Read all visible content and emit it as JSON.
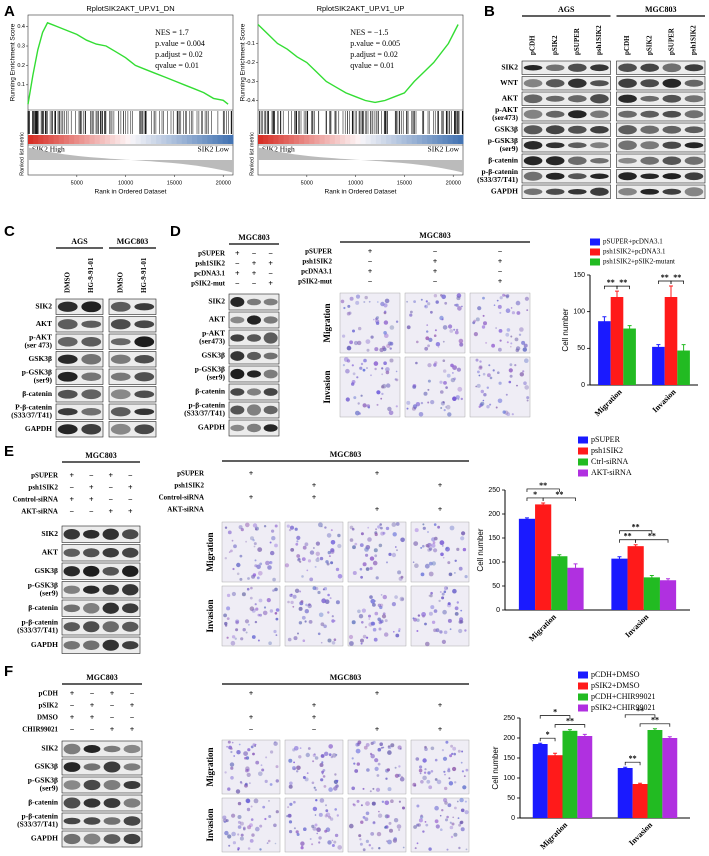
{
  "panel_labels": [
    "A",
    "B",
    "C",
    "D",
    "E",
    "F"
  ],
  "chart_data": [
    {
      "type": "line",
      "title": "RplotSIK2AKT_UP.V1_DN",
      "color": "#33dd33",
      "stats": [
        "NES = 1.7",
        "p.value = 0.004",
        "p.adjust = 0.02",
        "qvalue = 0.01"
      ],
      "labels": [
        "SIK2 High",
        "SIK2 Low"
      ],
      "xlabel": "Rank in Ordered Dataset",
      "ylabel": "Running Enrichment Score",
      "metric_label": "Ranked list metric",
      "x": [
        0,
        500,
        1000,
        1500,
        2000,
        2500,
        3000,
        4000,
        5000,
        6000,
        7000,
        8000,
        9000,
        10000,
        11000,
        12000,
        13000,
        14000,
        15000,
        16000,
        17000,
        18000,
        19000,
        20000,
        20500
      ],
      "values": [
        0,
        0.15,
        0.28,
        0.37,
        0.42,
        0.41,
        0.4,
        0.38,
        0.36,
        0.33,
        0.31,
        0.3,
        0.27,
        0.24,
        0.2,
        0.18,
        0.16,
        0.14,
        0.12,
        0.1,
        0.08,
        0.06,
        0.03,
        0.02,
        0
      ],
      "xlim": [
        0,
        21000
      ],
      "xticks": [
        5000,
        10000,
        15000,
        20000
      ],
      "ylim": [
        -0.03,
        0.46
      ],
      "yticks": [
        0.1,
        0.2,
        0.3,
        0.4
      ]
    },
    {
      "type": "line",
      "title": "RplotSIK2AKT_UP.V1_UP",
      "color": "#33dd33",
      "stats": [
        "NES = −1.5",
        "p.value = 0.005",
        "p.adjust = 0.02",
        "qvalue = 0.01"
      ],
      "labels": [
        "SIK2 High",
        "SIK2 Low"
      ],
      "xlabel": "Rank in Ordered Dataset",
      "ylabel": "Running Enrichment Score",
      "metric_label": "Ranked list metric",
      "x": [
        0,
        1000,
        2000,
        3000,
        4000,
        5000,
        6000,
        7000,
        8000,
        9000,
        10000,
        11000,
        12000,
        13000,
        14000,
        15000,
        16000,
        17000,
        18000,
        19500,
        20500
      ],
      "values": [
        0,
        -0.05,
        -0.1,
        -0.13,
        -0.17,
        -0.2,
        -0.25,
        -0.3,
        -0.33,
        -0.36,
        -0.38,
        -0.4,
        -0.41,
        -0.4,
        -0.38,
        -0.36,
        -0.3,
        -0.25,
        -0.2,
        -0.1,
        0
      ],
      "xlim": [
        0,
        21000
      ],
      "xticks": [
        5000,
        10000,
        15000,
        20000
      ],
      "ylim": [
        -0.45,
        0.05
      ],
      "yticks": [
        -0.1,
        -0.2,
        -0.3,
        -0.4
      ]
    },
    {
      "type": "bar",
      "ylabel": "Cell number",
      "categories": [
        "Migration",
        "Invasion"
      ],
      "ylim": [
        0,
        150
      ],
      "yticks": [
        0,
        50,
        100,
        150
      ],
      "series": [
        {
          "name": "pSUPER+pcDNA3.1",
          "color": "#1a1aff",
          "values": [
            87,
            52
          ],
          "errors": [
            6,
            3
          ]
        },
        {
          "name": "psh1SIK2+pcDNA3.1",
          "color": "#ff1a1a",
          "values": [
            120,
            120
          ],
          "errors": [
            8,
            15
          ]
        },
        {
          "name": "psh1SIK2+pSIK2-mutant",
          "color": "#22bb22",
          "values": [
            77,
            47
          ],
          "errors": [
            4,
            8
          ]
        }
      ],
      "significance": [
        "**",
        "**",
        "**",
        "**"
      ]
    },
    {
      "type": "bar",
      "ylabel": "Cell number",
      "categories": [
        "Migration",
        "Invasion"
      ],
      "ylim": [
        0,
        250
      ],
      "yticks": [
        0,
        50,
        100,
        150,
        200,
        250
      ],
      "series": [
        {
          "name": "pSUPER",
          "color": "#1a1aff",
          "values": [
            190,
            107
          ],
          "errors": [
            2,
            4
          ]
        },
        {
          "name": "psh1SIK2",
          "color": "#ff1a1a",
          "values": [
            220,
            133
          ],
          "errors": [
            3,
            3
          ]
        },
        {
          "name": "Ctrl-siRNA",
          "color": "#22bb22",
          "values": [
            112,
            68
          ],
          "errors": [
            3,
            4
          ]
        },
        {
          "name": "AKT-siRNA",
          "color": "#b030e0",
          "values": [
            88,
            62
          ],
          "errors": [
            8,
            3
          ]
        }
      ],
      "significance": [
        "**",
        "*",
        "**",
        "**",
        "**",
        "**"
      ]
    },
    {
      "type": "bar",
      "ylabel": "Cell number",
      "categories": [
        "Migration",
        "Invasion"
      ],
      "ylim": [
        0,
        250
      ],
      "yticks": [
        0,
        50,
        100,
        150,
        200,
        250
      ],
      "series": [
        {
          "name": "pCDH+DMSO",
          "color": "#1a1aff",
          "values": [
            185,
            125
          ],
          "errors": [
            2,
            2
          ]
        },
        {
          "name": "pSIK2+DMSO",
          "color": "#ff1a1a",
          "values": [
            157,
            85
          ],
          "errors": [
            5,
            2
          ]
        },
        {
          "name": "pCDH+CHIR99021",
          "color": "#22bb22",
          "values": [
            218,
            220
          ],
          "errors": [
            3,
            3
          ]
        },
        {
          "name": "pSIK2+CHIR99021",
          "color": "#b030e0",
          "values": [
            205,
            200
          ],
          "errors": [
            4,
            3
          ]
        }
      ],
      "significance": [
        "*",
        "*",
        "**",
        "**",
        "**",
        "**"
      ]
    }
  ],
  "blot_b": {
    "header": [
      "AGS",
      "MGC803"
    ],
    "lanes": [
      "pCDH",
      "pSIK2",
      "pSUPER",
      "psh1SIK2",
      "pCDH",
      "pSIK2",
      "pSUPER",
      "psh1SIK2"
    ],
    "rows": [
      [
        "SIK2"
      ],
      [
        "WNT"
      ],
      [
        "AKT"
      ],
      [
        "p-AKT",
        "(ser473)"
      ],
      [
        "GSK3β"
      ],
      [
        "p-GSK3β",
        "(ser9)"
      ],
      [
        "β-catenin"
      ],
      [
        "p-β-catenin",
        "(S33/37/T41)"
      ],
      [
        "GAPDH"
      ]
    ]
  },
  "blot_c": {
    "header": [
      "AGS",
      "MGC803"
    ],
    "lanes": [
      "DMSO",
      "HG-9-91-01",
      "DMSO",
      "HG-9-91-01"
    ],
    "rows": [
      [
        "SIK2"
      ],
      [
        "AKT"
      ],
      [
        "p-AKT",
        "(ser 473)"
      ],
      [
        "GSK3β"
      ],
      [
        "p-GSK3β",
        "(ser9)"
      ],
      [
        "β-catenin"
      ],
      [
        "P-β-catenin",
        "(S33/37/T41)"
      ],
      [
        "GAPDH"
      ]
    ]
  },
  "blot_d": {
    "header": [
      "MGC803"
    ],
    "conditions": [
      {
        "label": "pSUPER",
        "signs": [
          "+",
          "−",
          "−"
        ]
      },
      {
        "label": "psh1SIK2",
        "signs": [
          "−",
          "+",
          "+"
        ]
      },
      {
        "label": "pcDNA3.1",
        "signs": [
          "+",
          "+",
          "−"
        ]
      },
      {
        "label": "pSIK2-mut",
        "signs": [
          "−",
          "−",
          "+"
        ]
      }
    ],
    "rows": [
      [
        "SIK2"
      ],
      [
        "AKT"
      ],
      [
        "p-AKT",
        "(ser473)"
      ],
      [
        "GSK3β"
      ],
      [
        "p-GSK3β",
        "(ser9)"
      ],
      [
        "β-catenin"
      ],
      [
        "p-β-catenin",
        "(S33/37/T41)"
      ],
      [
        "GAPDH"
      ]
    ]
  },
  "micro_d": {
    "header": "MGC803",
    "conditions": [
      {
        "label": "pSUPER",
        "signs": [
          "+",
          "−",
          "−"
        ]
      },
      {
        "label": "psh1SIK2",
        "signs": [
          "−",
          "+",
          "+"
        ]
      },
      {
        "label": "pcDNA3.1",
        "signs": [
          "+",
          "+",
          "−"
        ]
      },
      {
        "label": "pSIK2-mut",
        "signs": [
          "−",
          "−",
          "+"
        ]
      }
    ],
    "rows": [
      "Migration",
      "Invasion"
    ]
  },
  "blot_e": {
    "header": [
      "MGC803"
    ],
    "conditions": [
      {
        "label": "pSUPER",
        "signs": [
          "+",
          "−",
          "+",
          "−"
        ]
      },
      {
        "label": "psh1SIK2",
        "signs": [
          "−",
          "+",
          "−",
          "+"
        ]
      },
      {
        "label": "Control-siRNA",
        "signs": [
          "+",
          "+",
          "−",
          "−"
        ]
      },
      {
        "label": "AKT-siRNA",
        "signs": [
          "−",
          "−",
          "+",
          "+"
        ]
      }
    ],
    "rows": [
      [
        "SIK2"
      ],
      [
        "AKT"
      ],
      [
        "GSK3β"
      ],
      [
        "p-GSK3β",
        "(ser9)"
      ],
      [
        "β-catenin"
      ],
      [
        "p-β-catenin",
        "(S33/37/T41)"
      ],
      [
        "GAPDH"
      ]
    ]
  },
  "micro_e": {
    "header": "MGC803",
    "conditions": [
      {
        "label": "pSUPER",
        "signs": [
          "+",
          null,
          "+",
          null
        ]
      },
      {
        "label": "psh1SIK2",
        "signs": [
          null,
          "+",
          null,
          "+"
        ]
      },
      {
        "label": "Control-siRNA",
        "signs": [
          "+",
          "+",
          null,
          null
        ]
      },
      {
        "label": "AKT-siRNA",
        "signs": [
          null,
          null,
          "+",
          "+"
        ]
      }
    ],
    "rows": [
      "Migration",
      "Invasion"
    ]
  },
  "blot_f": {
    "header": [
      "MGC803"
    ],
    "conditions": [
      {
        "label": "pCDH",
        "signs": [
          "+",
          "−",
          "+",
          "−"
        ]
      },
      {
        "label": "pSIK2",
        "signs": [
          "−",
          "+",
          "−",
          "+"
        ]
      },
      {
        "label": "DMSO",
        "signs": [
          "+",
          "+",
          "−",
          "−"
        ]
      },
      {
        "label": "CHIR99021",
        "signs": [
          "−",
          "−",
          "+",
          "+"
        ]
      }
    ],
    "rows": [
      [
        "SIK2"
      ],
      [
        "GSK3β"
      ],
      [
        "p-GSK3β",
        "(ser9)"
      ],
      [
        "β-catenin"
      ],
      [
        "p-β-catenin",
        "(S33/37/T41)"
      ],
      [
        "GAPDH"
      ]
    ]
  },
  "micro_f": {
    "header": "MGC803",
    "conditions": [
      {
        "signs": [
          "+",
          null,
          "+",
          null
        ]
      },
      {
        "signs": [
          null,
          "+",
          null,
          "+"
        ]
      },
      {
        "signs": [
          "+",
          "+",
          null,
          null
        ]
      },
      {
        "signs": [
          "−",
          "−",
          "+",
          "+"
        ]
      }
    ],
    "rows": [
      "Migration",
      "Invasion"
    ]
  }
}
